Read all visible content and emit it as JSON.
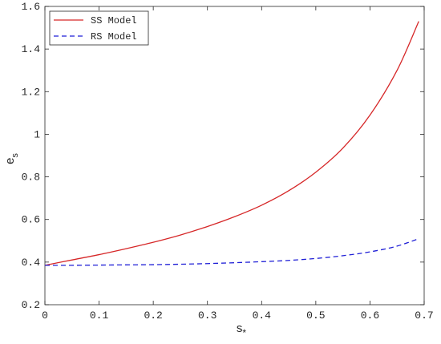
{
  "chart_data": {
    "type": "line",
    "xlabel": "s",
    "xlabel_subscript": "*",
    "ylabel": "e",
    "ylabel_subscript": "s",
    "xlim": [
      0,
      0.7
    ],
    "ylim": [
      0.2,
      1.6
    ],
    "x_ticks": [
      "0",
      "0.1",
      "0.2",
      "0.3",
      "0.4",
      "0.5",
      "0.6",
      "0.7"
    ],
    "y_ticks": [
      "0.2",
      "0.4",
      "0.6",
      "0.8",
      "1",
      "1.2",
      "1.4",
      "1.6"
    ],
    "grid": false,
    "legend_position": "top-left",
    "series": [
      {
        "name": "SS Model",
        "color": "#d62728",
        "style": "solid",
        "x": [
          0,
          0.05,
          0.1,
          0.15,
          0.2,
          0.25,
          0.3,
          0.35,
          0.4,
          0.45,
          0.5,
          0.55,
          0.6,
          0.65,
          0.69
        ],
        "y": [
          0.385,
          0.41,
          0.435,
          0.463,
          0.493,
          0.527,
          0.567,
          0.613,
          0.667,
          0.735,
          0.822,
          0.935,
          1.09,
          1.3,
          1.53
        ]
      },
      {
        "name": "RS Model",
        "color": "#1f1fd6",
        "style": "dashed",
        "x": [
          0,
          0.05,
          0.1,
          0.15,
          0.2,
          0.25,
          0.3,
          0.35,
          0.4,
          0.45,
          0.5,
          0.55,
          0.6,
          0.65,
          0.69
        ],
        "y": [
          0.385,
          0.385,
          0.386,
          0.387,
          0.388,
          0.39,
          0.393,
          0.397,
          0.402,
          0.408,
          0.417,
          0.43,
          0.448,
          0.475,
          0.51
        ]
      }
    ]
  }
}
